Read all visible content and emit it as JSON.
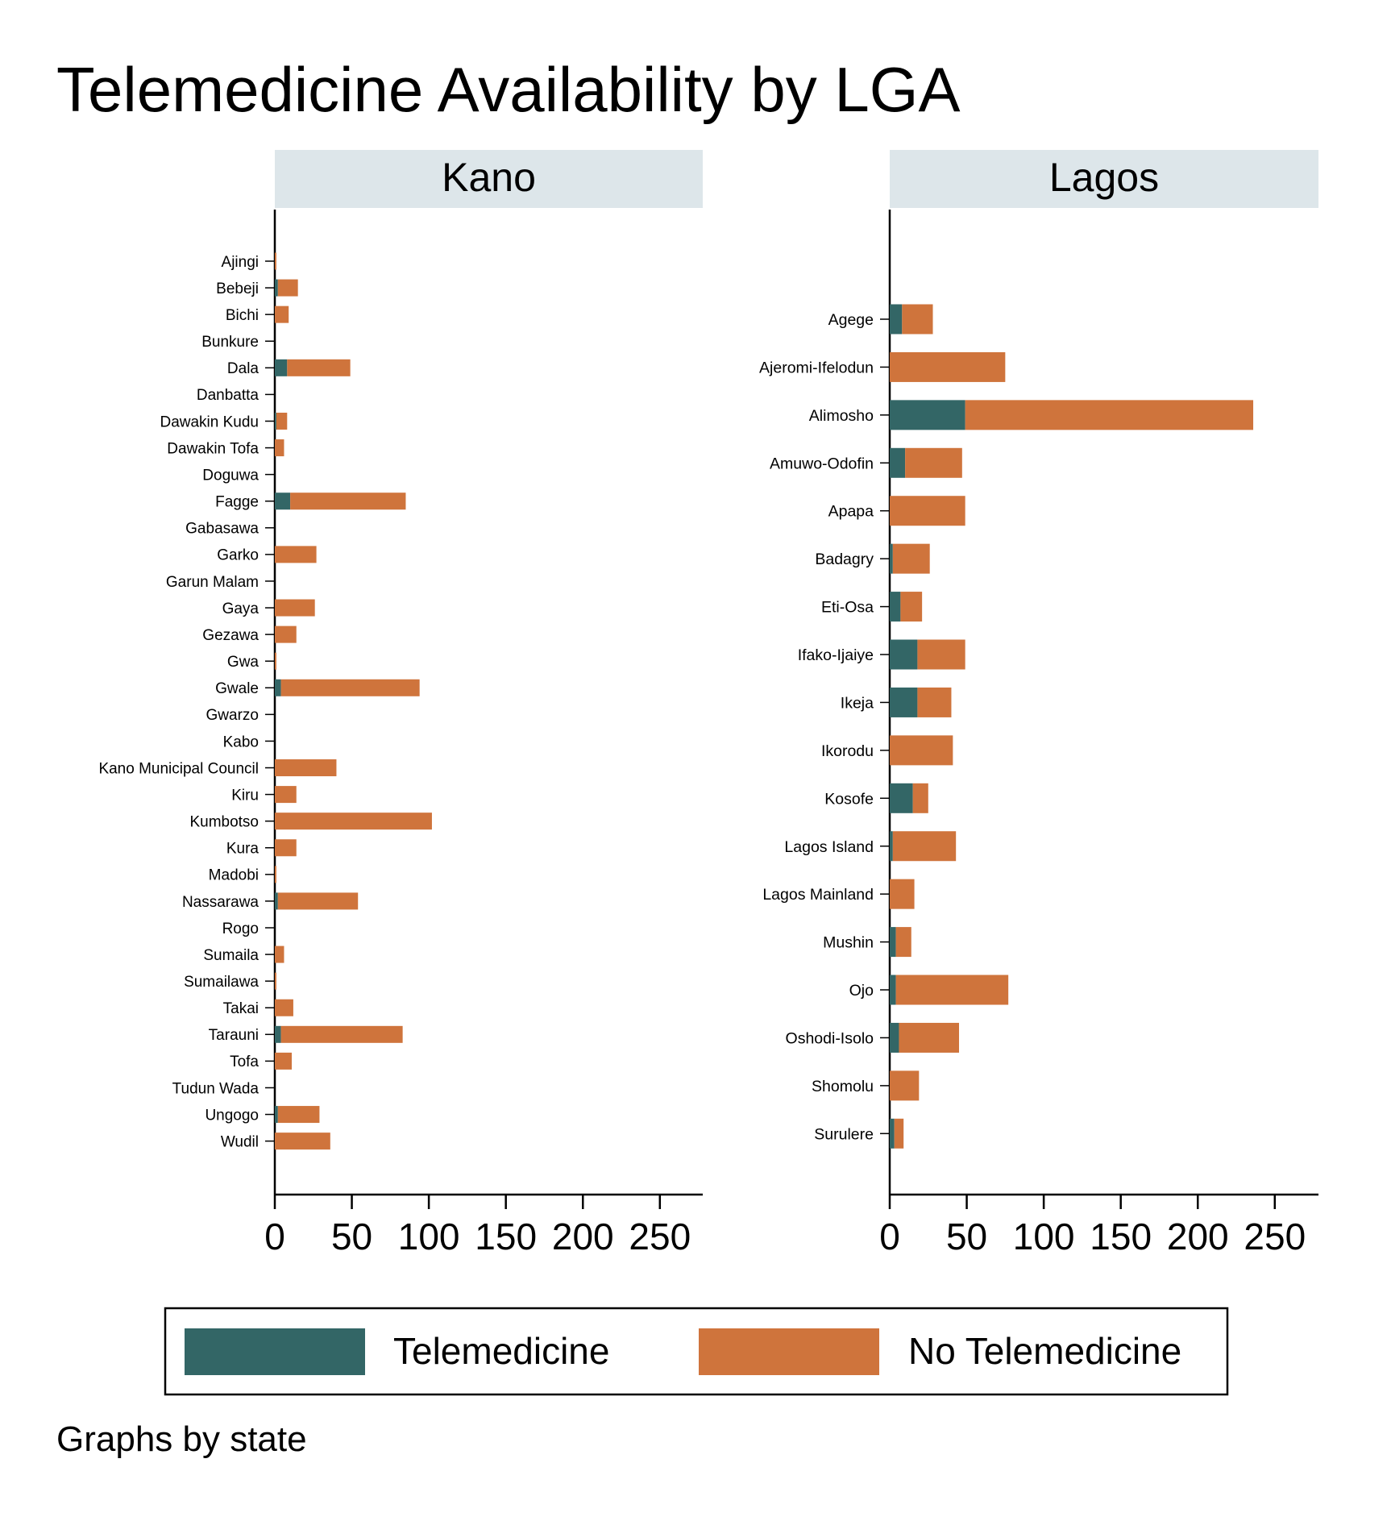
{
  "chart_data": {
    "type": "bar",
    "orientation": "horizontal",
    "stacked": true,
    "title": "Telemedicine Availability by LGA",
    "note": "Graphs by state",
    "xlim": [
      0,
      275
    ],
    "xticks": [
      0,
      50,
      100,
      150,
      200,
      250
    ],
    "grid": false,
    "legend_placement": "bottom",
    "colors": {
      "Telemedicine": "#336666",
      "No Telemedicine": "#cf743c",
      "panel_header": "#dde6ea"
    },
    "series_names": [
      "Telemedicine",
      "No Telemedicine"
    ],
    "panels": [
      {
        "name": "Kano",
        "categories": [
          "Ajingi",
          "Bebeji",
          "Bichi",
          "Bunkure",
          "Dala",
          "Danbatta",
          "Dawakin Kudu",
          "Dawakin Tofa",
          "Doguwa",
          "Fagge",
          "Gabasawa",
          "Garko",
          "Garun Malam",
          "Gaya",
          "Gezawa",
          "Gwa",
          "Gwale",
          "Gwarzo",
          "Kabo",
          "Kano Municipal Council",
          "Kiru",
          "Kumbotso",
          "Kura",
          "Madobi",
          "Nassarawa",
          "Rogo",
          "Sumaila",
          "Sumailawa",
          "Takai",
          "Tarauni",
          "Tofa",
          "Tudun Wada",
          "Ungogo",
          "Wudil"
        ],
        "series": [
          {
            "name": "Telemedicine",
            "values": [
              0,
              2,
              0,
              0,
              8,
              0,
              1,
              0,
              0,
              10,
              0,
              0,
              0,
              0,
              0,
              0,
              4,
              0,
              0,
              0,
              0,
              0,
              0,
              0,
              2,
              0,
              0,
              0,
              0,
              4,
              0,
              0,
              2,
              0
            ]
          },
          {
            "name": "No Telemedicine",
            "values": [
              1,
              13,
              9,
              0,
              41,
              0,
              7,
              6,
              0,
              75,
              0,
              27,
              0,
              26,
              14,
              1,
              90,
              0,
              0,
              40,
              14,
              102,
              14,
              1,
              52,
              0,
              6,
              1,
              12,
              79,
              11,
              0,
              27,
              36
            ]
          }
        ]
      },
      {
        "name": "Lagos",
        "categories": [
          "Agege",
          "Ajeromi-Ifelodun",
          "Alimosho",
          "Amuwo-Odofin",
          "Apapa",
          "Badagry",
          "Eti-Osa",
          "Ifako-Ijaiye",
          "Ikeja",
          "Ikorodu",
          "Kosofe",
          "Lagos Island",
          "Lagos Mainland",
          "Mushin",
          "Ojo",
          "Oshodi-Isolo",
          "Shomolu",
          "Surulere"
        ],
        "series": [
          {
            "name": "Telemedicine",
            "values": [
              8,
              0,
              49,
              10,
              0,
              2,
              7,
              18,
              18,
              0,
              15,
              2,
              0,
              4,
              4,
              6,
              0,
              3
            ]
          },
          {
            "name": "No Telemedicine",
            "values": [
              20,
              75,
              187,
              37,
              49,
              24,
              14,
              31,
              22,
              41,
              10,
              41,
              16,
              10,
              73,
              39,
              19,
              6
            ]
          }
        ]
      }
    ]
  }
}
